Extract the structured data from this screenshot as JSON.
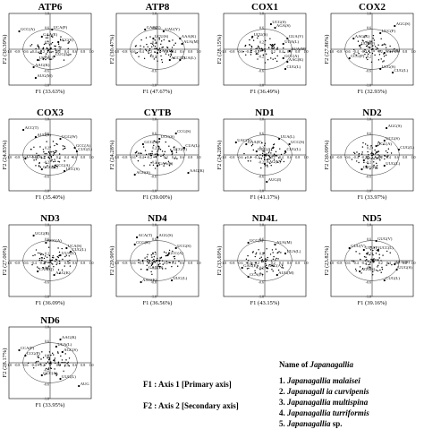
{
  "chart_data": [
    {
      "type": "scatter",
      "title": "ATP6",
      "xlabel": "F1 (33.63%)",
      "ylabel": "F2 (30.39%)",
      "xlim": [
        -1,
        1
      ],
      "ylim": [
        -1,
        1
      ],
      "labels": [
        {
          "text": "UCA(P)",
          "x": 0.05,
          "y": 0.55
        },
        {
          "text": "GCC(A)",
          "x": -0.75,
          "y": 0.5
        },
        {
          "text": "UCC(S)",
          "x": 0.2,
          "y": 0.2
        },
        {
          "text": "UGG(L)",
          "x": -0.3,
          "y": -0.3
        },
        {
          "text": "AAG(K)",
          "x": -0.4,
          "y": -0.5
        },
        {
          "text": "AUG(M)",
          "x": -0.35,
          "y": -0.8
        },
        {
          "text": "GAA(E)",
          "x": -0.2,
          "y": 0.35
        },
        {
          "text": "CUG(L)",
          "x": 0.1,
          "y": -0.2
        }
      ]
    },
    {
      "type": "scatter",
      "title": "ATP8",
      "xlabel": "F1 (47.67%)",
      "ylabel": "F2 (30.47%)",
      "xlim": [
        -1,
        1
      ],
      "ylim": [
        -1,
        1
      ],
      "labels": [
        {
          "text": "GAA(E)",
          "x": -0.3,
          "y": 0.55
        },
        {
          "text": "UAU(Y)",
          "x": 0.15,
          "y": 0.5
        },
        {
          "text": "AAA(K)",
          "x": 0.55,
          "y": 0.3
        },
        {
          "text": "AUA(M)",
          "x": 0.6,
          "y": 0.15
        },
        {
          "text": "UCU(S)",
          "x": -0.1,
          "y": 0.3
        },
        {
          "text": "ACC(T)",
          "x": 0.3,
          "y": -0.3
        },
        {
          "text": "UUA(L)",
          "x": 0.55,
          "y": -0.3
        },
        {
          "text": "CAA(Q)",
          "x": 0.0,
          "y": -0.1
        }
      ]
    },
    {
      "type": "scatter",
      "title": "COX1",
      "xlabel": "F1 (36.49%)",
      "ylabel": "F2 (28.15%)",
      "xlim": [
        -1,
        1
      ],
      "ylim": [
        -1,
        1
      ],
      "labels": [
        {
          "text": "UCG(S)",
          "x": 0.15,
          "y": 0.7
        },
        {
          "text": "AGA(S)",
          "x": 0.25,
          "y": 0.6
        },
        {
          "text": "UCU(S)",
          "x": -0.3,
          "y": 0.35
        },
        {
          "text": "GUA(V)",
          "x": 0.55,
          "y": 0.3
        },
        {
          "text": "UUA(L)",
          "x": 0.45,
          "y": 0.15
        },
        {
          "text": "AUA(M)",
          "x": 0.6,
          "y": -0.05
        },
        {
          "text": "GCC(A)",
          "x": 0.45,
          "y": -0.25
        },
        {
          "text": "AAG(K)",
          "x": 0.55,
          "y": -0.35
        },
        {
          "text": "CUG(L)",
          "x": 0.5,
          "y": -0.55
        }
      ]
    },
    {
      "type": "scatter",
      "title": "COX2",
      "xlabel": "F1 (32.93%)",
      "ylabel": "F2 (27.86%)",
      "xlim": [
        -1,
        1
      ],
      "ylim": [
        -1,
        1
      ],
      "labels": [
        {
          "text": "AGG(S)",
          "x": 0.55,
          "y": 0.65
        },
        {
          "text": "UUC(F)",
          "x": 0.2,
          "y": 0.45
        },
        {
          "text": "AAG(K)",
          "x": -0.45,
          "y": 0.3
        },
        {
          "text": "UUU(F)",
          "x": -0.3,
          "y": 0.1
        },
        {
          "text": "CGA(R)",
          "x": 0.3,
          "y": -0.1
        },
        {
          "text": "CCG(P)",
          "x": -0.55,
          "y": -0.25
        },
        {
          "text": "CUG(L)",
          "x": 0.5,
          "y": -0.65
        },
        {
          "text": "UCG(S)",
          "x": 0.2,
          "y": -0.55
        }
      ]
    },
    {
      "type": "scatter",
      "title": "COX3",
      "xlabel": "F1 (35.40%)",
      "ylabel": "F2 (24.83%)",
      "xlim": [
        -1,
        1
      ],
      "ylim": [
        -1,
        1
      ],
      "labels": [
        {
          "text": "ACC(T)",
          "x": -0.65,
          "y": 0.7
        },
        {
          "text": "AUG(S)",
          "x": -0.35,
          "y": 0.5
        },
        {
          "text": "UGG(W)",
          "x": 0.25,
          "y": 0.45
        },
        {
          "text": "GCC(A)",
          "x": 0.6,
          "y": 0.2
        },
        {
          "text": "CUG(L)",
          "x": 0.65,
          "y": 0.1
        },
        {
          "text": "CCC(P)",
          "x": -0.6,
          "y": -0.1
        },
        {
          "text": "GCG(A)",
          "x": 0.1,
          "y": -0.35
        },
        {
          "text": "UCC(S)",
          "x": 0.35,
          "y": -0.45
        },
        {
          "text": "GGG(G)",
          "x": -0.2,
          "y": -0.4
        }
      ]
    },
    {
      "type": "scatter",
      "title": "CYTB",
      "xlabel": "F1 (39.00%)",
      "ylabel": "F2 (24.28%)",
      "xlim": [
        -1,
        1
      ],
      "ylim": [
        -1,
        1
      ],
      "labels": [
        {
          "text": "CCG(S)",
          "x": 0.45,
          "y": 0.6
        },
        {
          "text": "UCC(S)",
          "x": 0.05,
          "y": 0.45
        },
        {
          "text": "GCG(A)",
          "x": -0.35,
          "y": 0.3
        },
        {
          "text": "CUA(L)",
          "x": 0.65,
          "y": 0.2
        },
        {
          "text": "UCG(S)",
          "x": 0.35,
          "y": 0.1
        },
        {
          "text": "AGG(S)",
          "x": -0.55,
          "y": -0.55
        },
        {
          "text": "AAG(K)",
          "x": 0.75,
          "y": -0.5
        },
        {
          "text": "GAA(E)",
          "x": 0.0,
          "y": -0.3
        }
      ]
    },
    {
      "type": "scatter",
      "title": "ND1",
      "xlabel": "F1 (41.17%)",
      "ylabel": "F2 (24.28%)",
      "xlim": [
        -1,
        1
      ],
      "ylim": [
        -1,
        1
      ],
      "labels": [
        {
          "text": "UAC(Y)",
          "x": -0.7,
          "y": 0.35
        },
        {
          "text": "GAA(E)",
          "x": -0.45,
          "y": 0.3
        },
        {
          "text": "UCC(S)",
          "x": 0.6,
          "y": 0.3
        },
        {
          "text": "UUA(L)",
          "x": 0.35,
          "y": 0.45
        },
        {
          "text": "AAG(K)",
          "x": 0.0,
          "y": -0.25
        },
        {
          "text": "GCC(A)",
          "x": -0.2,
          "y": 0.1
        },
        {
          "text": "CUG(L)",
          "x": 0.5,
          "y": 0.1
        },
        {
          "text": "AUG(I)",
          "x": 0.05,
          "y": -0.75
        }
      ]
    },
    {
      "type": "scatter",
      "title": "ND2",
      "xlabel": "F1 (33.97%)",
      "ylabel": "F2 (30.09%)",
      "xlim": [
        -1,
        1
      ],
      "ylim": [
        -1,
        1
      ],
      "labels": [
        {
          "text": "AGC(S)",
          "x": 0.35,
          "y": 0.75
        },
        {
          "text": "UCG(S)",
          "x": 0.3,
          "y": 0.4
        },
        {
          "text": "CUG(L)",
          "x": 0.65,
          "y": 0.15
        },
        {
          "text": "GCC(A)",
          "x": 0.1,
          "y": 0.25
        },
        {
          "text": "AAA(K)",
          "x": -0.2,
          "y": -0.15
        },
        {
          "text": "CCG(P)",
          "x": -0.25,
          "y": -0.4
        },
        {
          "text": "UUG(L)",
          "x": 0.3,
          "y": -0.3
        }
      ]
    },
    {
      "type": "scatter",
      "title": "ND3",
      "xlabel": "F1 (36.09%)",
      "ylabel": "F2 (27.00%)",
      "xlim": [
        -1,
        1
      ],
      "ylim": [
        -1,
        1
      ],
      "labels": [
        {
          "text": "UGG(R)",
          "x": -0.4,
          "y": 0.7
        },
        {
          "text": "GCC(A)",
          "x": -0.1,
          "y": 0.5
        },
        {
          "text": "UCA(S)",
          "x": 0.4,
          "y": 0.35
        },
        {
          "text": "CUG(L)",
          "x": 0.5,
          "y": 0.25
        },
        {
          "text": "UUA(L)",
          "x": 0.25,
          "y": 0.15
        },
        {
          "text": "CAA(Q)",
          "x": -0.3,
          "y": -0.3
        },
        {
          "text": "AAG(K)",
          "x": 0.1,
          "y": -0.4
        }
      ]
    },
    {
      "type": "scatter",
      "title": "ND4",
      "xlabel": "F1 (36.56%)",
      "ylabel": "F2 (29.90%)",
      "xlim": [
        -1,
        1
      ],
      "ylim": [
        -1,
        1
      ],
      "labels": [
        {
          "text": "ACA(T)",
          "x": -0.5,
          "y": 0.65
        },
        {
          "text": "AGG(S)",
          "x": 0.0,
          "y": 0.65
        },
        {
          "text": "CCG(R)",
          "x": -0.55,
          "y": 0.45
        },
        {
          "text": "UCG(S)",
          "x": 0.45,
          "y": 0.35
        },
        {
          "text": "GCC(A)",
          "x": 0.25,
          "y": 0.15
        },
        {
          "text": "GAG(D)",
          "x": -0.25,
          "y": -0.25
        },
        {
          "text": "UUC(L)",
          "x": 0.35,
          "y": -0.55
        },
        {
          "text": "AAG(K)",
          "x": -0.4,
          "y": -0.6
        }
      ]
    },
    {
      "type": "scatter",
      "title": "ND4L",
      "xlabel": "F1 (43.15%)",
      "ylabel": "F2 (33.69%)",
      "xlim": [
        -1,
        1
      ],
      "ylim": [
        -1,
        1
      ],
      "labels": [
        {
          "text": "UCC(S)",
          "x": -0.4,
          "y": 0.5
        },
        {
          "text": "AUA(M)",
          "x": 0.25,
          "y": 0.45
        },
        {
          "text": "UUA(L)",
          "x": 0.5,
          "y": 0.2
        },
        {
          "text": "GAG(E)",
          "x": -0.55,
          "y": -0.2
        },
        {
          "text": "CCA(P)",
          "x": -0.4,
          "y": -0.45
        },
        {
          "text": "GCC(A)",
          "x": 0.05,
          "y": -0.2
        },
        {
          "text": "AUG(M)",
          "x": 0.3,
          "y": -0.4
        }
      ]
    },
    {
      "type": "scatter",
      "title": "ND5",
      "xlabel": "F1 (39.16%)",
      "ylabel": "F2 (23.82%)",
      "xlim": [
        -1,
        1
      ],
      "ylim": [
        -1,
        1
      ],
      "labels": [
        {
          "text": "GUG(V)",
          "x": 0.1,
          "y": 0.55
        },
        {
          "text": "GUU(V)",
          "x": -0.55,
          "y": 0.35
        },
        {
          "text": "UUU(F)",
          "x": -0.2,
          "y": 0.3
        },
        {
          "text": "UCC(L)",
          "x": 0.15,
          "y": 0.3
        },
        {
          "text": "UCU(S)",
          "x": 0.55,
          "y": -0.1
        },
        {
          "text": "UUG(S)",
          "x": 0.6,
          "y": -0.25
        },
        {
          "text": "AGG(S)",
          "x": -0.3,
          "y": -0.3
        },
        {
          "text": "CUG(L)",
          "x": 0.3,
          "y": -0.55
        }
      ]
    },
    {
      "type": "scatter",
      "title": "ND6",
      "xlabel": "F1 (33.95%)",
      "ylabel": "F2 (28.17%)",
      "xlim": [
        -1,
        1
      ],
      "ylim": [
        -1,
        1
      ],
      "labels": [
        {
          "text": "AAG(K)",
          "x": 0.25,
          "y": 0.65
        },
        {
          "text": "CCA(P)",
          "x": -0.75,
          "y": 0.35
        },
        {
          "text": "CCG(P)",
          "x": -0.6,
          "y": 0.2
        },
        {
          "text": "UUA(L)",
          "x": 0.15,
          "y": 0.45
        },
        {
          "text": "AGC(S)",
          "x": 0.3,
          "y": 0.3
        },
        {
          "text": "GCC(A)",
          "x": -0.2,
          "y": -0.35
        },
        {
          "text": "UUG(L)",
          "x": 0.25,
          "y": -0.45
        },
        {
          "text": "AUG",
          "x": 0.7,
          "y": -0.65
        }
      ]
    }
  ],
  "tick_labels": [
    "-1.0",
    "-0.8",
    "-0.6",
    "-0.4",
    "-0.2",
    "0",
    "0.2",
    "0.4",
    "0.6",
    "0.8",
    "1.0"
  ],
  "legend": {
    "axis1": "F1 : Axis 1 [Primary axis]",
    "axis2": "F2 : Axis 2 [Secondary axis]",
    "title_prefix": "Name of ",
    "title_genus": "Japanagallia",
    "species": [
      {
        "num": "1.",
        "name": "Japanagallia malaisei"
      },
      {
        "num": "2.",
        "name": "Japanagall ia curvipenis"
      },
      {
        "num": "3.",
        "name": "Japanagallia multispina"
      },
      {
        "num": "4.",
        "name": "Japanagallia turriformis"
      },
      {
        "num": "5.",
        "name": "Japanagallia",
        "suffix": " sp."
      }
    ]
  }
}
